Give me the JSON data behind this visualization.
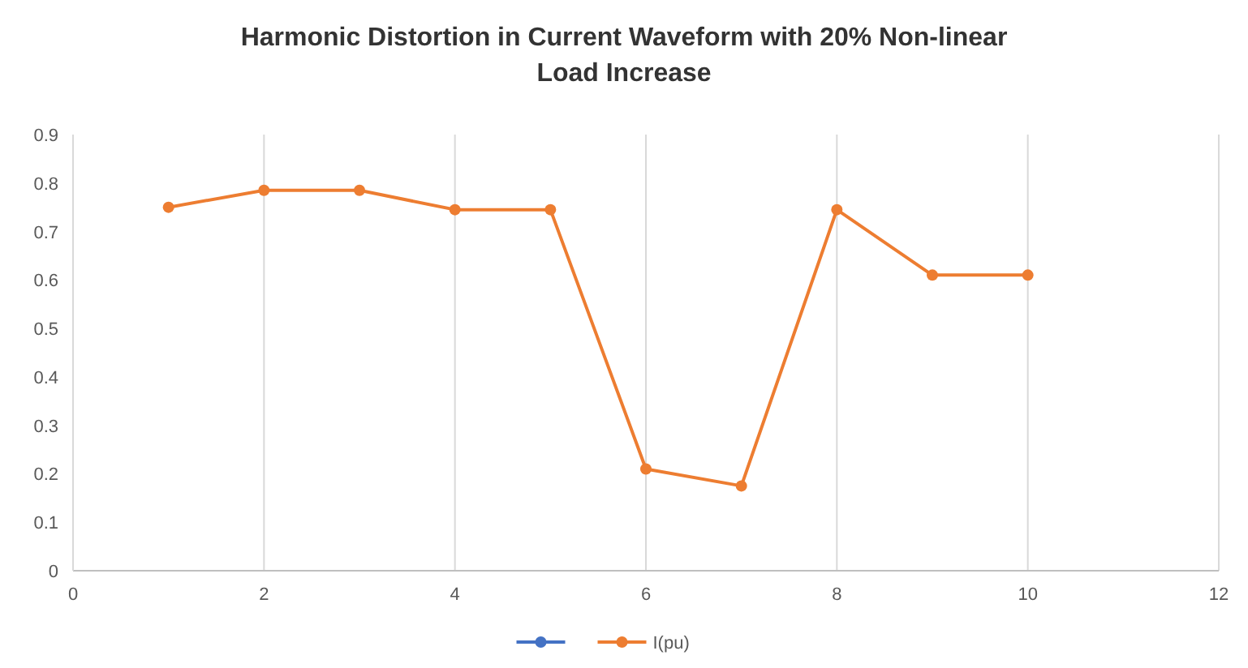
{
  "chart_data": {
    "type": "line",
    "title": "Harmonic Distortion in Current Waveform with 20% Non-linear Load Increase",
    "x": [
      1,
      2,
      3,
      4,
      5,
      6,
      7,
      8,
      9,
      10
    ],
    "series": [
      {
        "color": "#4472c4",
        "values": [
          null,
          null,
          null,
          null,
          null,
          null,
          null,
          null,
          null,
          null
        ]
      },
      {
        "name": "I(pu)",
        "color": "#ed7d31",
        "values": [
          0.75,
          0.785,
          0.785,
          0.745,
          0.745,
          0.21,
          0.175,
          0.745,
          0.61,
          0.61
        ]
      }
    ],
    "xlim": [
      0,
      12
    ],
    "xticks": [
      0,
      2,
      4,
      6,
      8,
      10,
      12
    ],
    "ylim": [
      0,
      0.9
    ],
    "yticks": [
      0,
      0.1,
      0.2,
      0.3,
      0.4,
      0.5,
      0.6,
      0.7,
      0.8,
      0.9
    ],
    "grid": "x",
    "legend": "bottom",
    "marker": "circle",
    "line_style": "solid"
  }
}
